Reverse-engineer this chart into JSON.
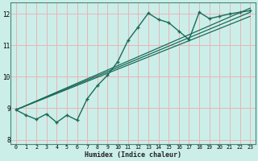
{
  "xlabel": "Humidex (Indice chaleur)",
  "bg_color": "#cceee8",
  "grid_color": "#e8b4b8",
  "line_color": "#1a6b5a",
  "xlim": [
    -0.5,
    23.5
  ],
  "ylim": [
    7.85,
    12.35
  ],
  "xticks": [
    0,
    1,
    2,
    3,
    4,
    5,
    6,
    7,
    8,
    9,
    10,
    11,
    12,
    13,
    14,
    15,
    16,
    17,
    18,
    19,
    20,
    21,
    22,
    23
  ],
  "yticks": [
    8,
    9,
    10,
    11,
    12
  ],
  "wiggly_x": [
    0,
    1,
    2,
    3,
    4,
    5,
    6,
    7,
    8,
    9,
    10,
    11,
    12,
    13,
    14,
    15,
    16,
    17,
    18,
    19,
    20,
    21,
    22,
    23
  ],
  "wiggly_y": [
    8.95,
    8.78,
    8.65,
    8.82,
    8.55,
    8.78,
    8.62,
    9.3,
    9.72,
    10.05,
    10.48,
    11.15,
    11.58,
    12.02,
    11.82,
    11.72,
    11.45,
    11.18,
    12.05,
    11.85,
    11.92,
    12.0,
    12.05,
    12.1
  ],
  "diag_lines": [
    {
      "x0": 0.0,
      "y0": 8.95,
      "x1": 23.0,
      "y1": 12.18
    },
    {
      "x0": 0.0,
      "y0": 8.95,
      "x1": 23.0,
      "y1": 12.05
    },
    {
      "x0": 0.0,
      "y0": 8.95,
      "x1": 23.0,
      "y1": 11.92
    }
  ]
}
